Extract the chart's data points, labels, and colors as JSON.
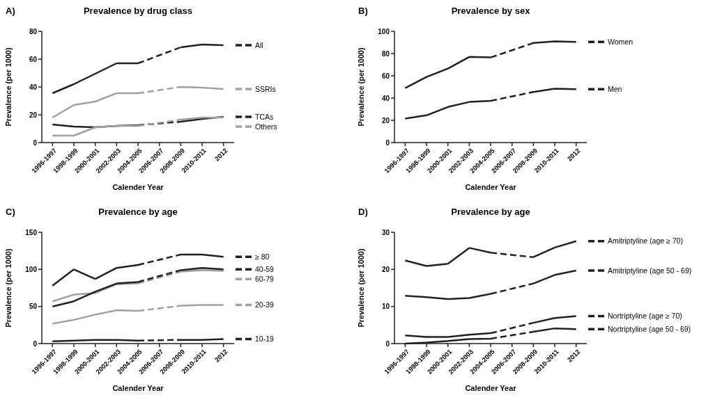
{
  "chart_data": [
    {
      "type": "line",
      "title": "Prevalence by drug class",
      "annotations": [
        "A)"
      ],
      "xlabel": "Calender Year",
      "ylabel": "Prevalence (per 1000)",
      "categories": [
        "1996-1997",
        "1998-1999",
        "2000-2001",
        "2002-2003",
        "2004-2005",
        "2006-2007",
        "2008-2009",
        "2010-2011",
        "2012"
      ],
      "ylim": [
        0,
        80
      ],
      "yticks": [
        0,
        20,
        40,
        60,
        80
      ],
      "legend": "right",
      "line_style": "dashed",
      "series": [
        {
          "name": "All",
          "color": "#231f20",
          "values": [
            35.5,
            42,
            49.5,
            57,
            57,
            null,
            68.5,
            70.5,
            70
          ]
        },
        {
          "name": "SSRIs",
          "color": "#a0a0a0",
          "values": [
            18,
            27,
            29.5,
            35.5,
            35.5,
            null,
            40,
            39.5,
            38.5
          ]
        },
        {
          "name": "TCAs",
          "color": "#231f20",
          "values": [
            13,
            11.5,
            11,
            12,
            12.5,
            null,
            15,
            17,
            18.5
          ]
        },
        {
          "name": "Others",
          "color": "#a0a0a0",
          "values": [
            5,
            5,
            11,
            12,
            12,
            null,
            16.5,
            18,
            18
          ]
        }
      ]
    },
    {
      "type": "line",
      "title": "Prevalence by sex",
      "annotations": [
        "B)"
      ],
      "xlabel": "Calender Year",
      "ylabel": "Prevalence (per 1000)",
      "categories": [
        "1996-1997",
        "1998-1999",
        "2000-2001",
        "2002-2003",
        "2004-2005",
        "2006-2007",
        "2008-2009",
        "2010-2011",
        "2012"
      ],
      "ylim": [
        0,
        100
      ],
      "yticks": [
        0,
        20,
        40,
        60,
        80,
        100
      ],
      "legend": "right",
      "line_style": "dashed",
      "series": [
        {
          "name": "Women",
          "color": "#231f20",
          "values": [
            49,
            59,
            66.5,
            77,
            76.5,
            null,
            89.5,
            91,
            90.5
          ]
        },
        {
          "name": "Men",
          "color": "#231f20",
          "values": [
            21.5,
            24.5,
            32,
            36.5,
            37.5,
            null,
            45.5,
            48.5,
            48
          ]
        }
      ]
    },
    {
      "type": "line",
      "title": "Prevalence by age",
      "annotations": [
        "C)"
      ],
      "xlabel": "Calender Year",
      "ylabel": "Prevalence (per 1000)",
      "categories": [
        "1996-1997",
        "1998-1999",
        "2000-2001",
        "2002-2003",
        "2004-2005",
        "2006-2007",
        "2008-2009",
        "2010-2011",
        "2012"
      ],
      "ylim": [
        0,
        150
      ],
      "yticks": [
        0,
        50,
        100,
        150
      ],
      "legend": "right",
      "line_style": "dashed",
      "series": [
        {
          "name": "≥ 80",
          "color": "#231f20",
          "values": [
            78,
            100,
            87,
            102,
            106,
            null,
            120,
            120,
            117
          ]
        },
        {
          "name": "60-79",
          "color": "#a0a0a0",
          "values": [
            57,
            66,
            68,
            80,
            81,
            null,
            97,
            99,
            98
          ]
        },
        {
          "name": "40-59",
          "color": "#231f20",
          "values": [
            50,
            57,
            70,
            81,
            83,
            null,
            99,
            102,
            100
          ]
        },
        {
          "name": "20-39",
          "color": "#a0a0a0",
          "values": [
            27,
            32,
            39,
            45,
            44,
            null,
            51,
            52,
            52
          ]
        },
        {
          "name": "10-19",
          "color": "#231f20",
          "values": [
            3,
            4,
            5,
            5,
            4,
            null,
            5,
            5,
            6
          ]
        }
      ]
    },
    {
      "type": "line",
      "title": "Prevalence by age",
      "annotations": [
        "D)"
      ],
      "xlabel": "Calender Year",
      "ylabel": "Prevalence (per 1000)",
      "categories": [
        "1996-1997",
        "1998-1999",
        "2000-2001",
        "2002-2003",
        "2004-2005",
        "2006-2007",
        "2008-2009",
        "2010-2011",
        "2012"
      ],
      "ylim": [
        0,
        30
      ],
      "yticks": [
        0,
        10,
        20,
        30
      ],
      "legend": "right",
      "line_style": "dashed",
      "series": [
        {
          "name": "Amitriptyline (age ≥ 70)",
          "color": "#231f20",
          "values": [
            22.4,
            20.9,
            21.5,
            25.8,
            24.5,
            null,
            23.3,
            25.9,
            27.6
          ]
        },
        {
          "name": "Amitriptyline (age 50 - 69)",
          "color": "#231f20",
          "values": [
            12.9,
            12.5,
            12,
            12.3,
            13.4,
            null,
            16.2,
            18.5,
            19.7
          ]
        },
        {
          "name": "Nortriptyline (age ≥ 70)",
          "color": "#231f20",
          "values": [
            2.2,
            1.8,
            1.8,
            2.4,
            2.8,
            null,
            5.6,
            6.9,
            7.4
          ]
        },
        {
          "name": "Nortriptyline (age 50 - 69)",
          "color": "#231f20",
          "values": [
            0,
            0.3,
            0.7,
            1.2,
            1.3,
            null,
            3.2,
            4.1,
            3.9
          ]
        }
      ]
    }
  ]
}
